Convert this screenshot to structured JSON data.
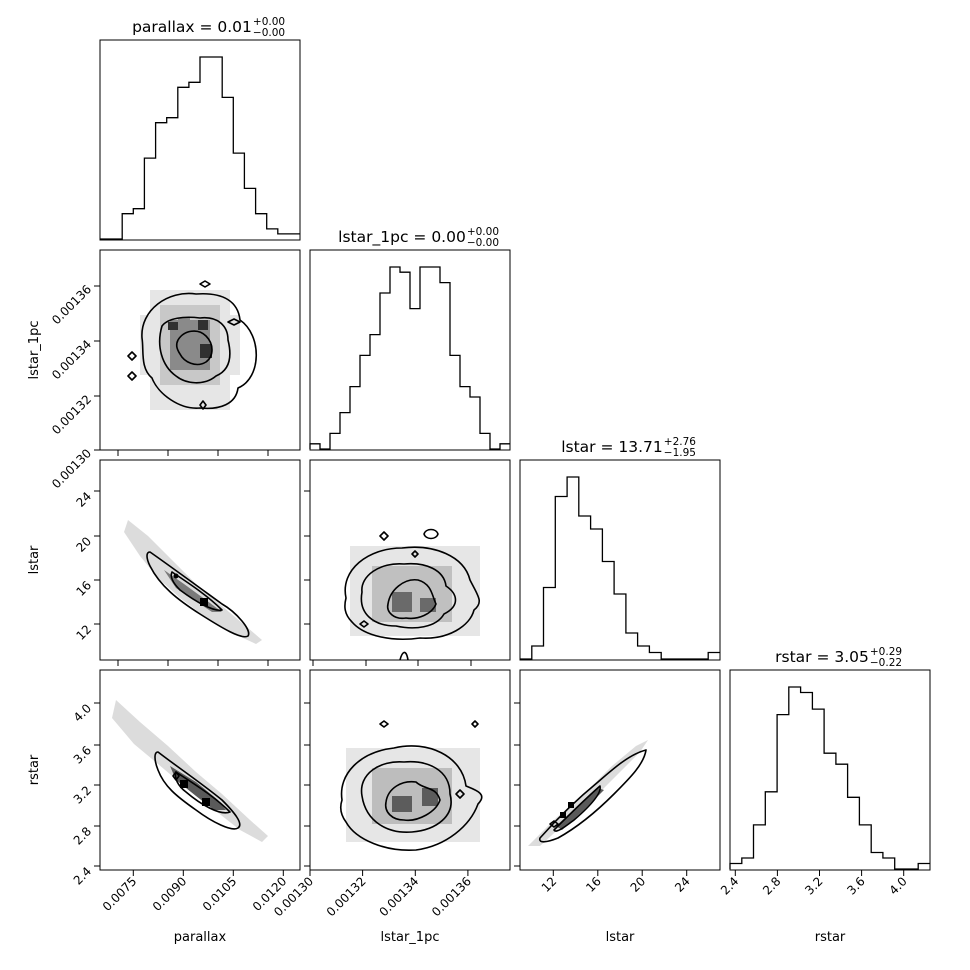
{
  "chart_data": {
    "type": "corner",
    "parameters": [
      "parallax",
      "lstar_1pc",
      "lstar",
      "rstar"
    ],
    "titles": [
      {
        "name": "parallax",
        "median": "0.01",
        "plus": "+0.00",
        "minus": "−0.00"
      },
      {
        "name": "lstar_1pc",
        "median": "0.00",
        "plus": "+0.00",
        "minus": "−0.00"
      },
      {
        "name": "lstar",
        "median": "13.71",
        "plus": "+2.76",
        "minus": "−1.95"
      },
      {
        "name": "rstar",
        "median": "3.05",
        "plus": "+0.29",
        "minus": "−0.22"
      }
    ],
    "ranges": [
      [
        0.0065,
        0.0125
      ],
      [
        0.0013,
        0.001376
      ],
      [
        9.0,
        27.0
      ],
      [
        2.35,
        4.25
      ]
    ],
    "xticks": [
      [
        "0.0075",
        "0.0090",
        "0.0105",
        "0.0120"
      ],
      [
        "0.00130",
        "0.00132",
        "0.00134",
        "0.00136"
      ],
      [
        "12",
        "16",
        "20",
        "24"
      ],
      [
        "2.4",
        "2.8",
        "3.2",
        "3.6",
        "4.0"
      ]
    ],
    "xtick_values": [
      [
        0.0075,
        0.009,
        0.0105,
        0.012
      ],
      [
        0.0013,
        0.00132,
        0.00134,
        0.00136
      ],
      [
        12,
        16,
        20,
        24
      ],
      [
        2.4,
        2.8,
        3.2,
        3.6,
        4.0
      ]
    ],
    "histograms": [
      {
        "param": "parallax",
        "counts": [
          0,
          0,
          5,
          6,
          16,
          23,
          24,
          30,
          31,
          36,
          36,
          28,
          17,
          10,
          5,
          2,
          1,
          1
        ]
      },
      {
        "param": "lstar_1pc",
        "counts": [
          1,
          0,
          3,
          7,
          12,
          18,
          22,
          30,
          35,
          34,
          27,
          35,
          35,
          32,
          18,
          12,
          10,
          3,
          0,
          1
        ]
      },
      {
        "param": "lstar",
        "counts": [
          0,
          2,
          11,
          25,
          28,
          22,
          20,
          15,
          10,
          4,
          2,
          1,
          0,
          0,
          0,
          0,
          1
        ]
      },
      {
        "param": "rstar",
        "counts": [
          1,
          2,
          8,
          14,
          28,
          33,
          32,
          29,
          21,
          19,
          13,
          8,
          3,
          2,
          0,
          0,
          1
        ]
      }
    ]
  }
}
